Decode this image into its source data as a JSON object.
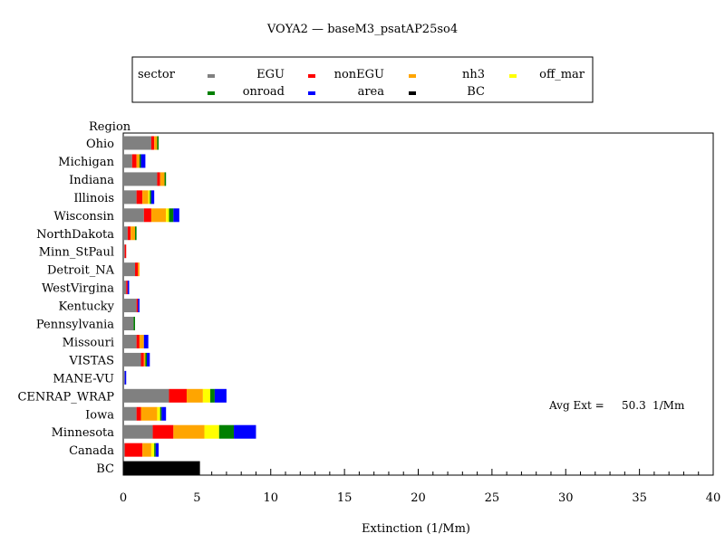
{
  "chart_data": {
    "type": "bar",
    "orientation": "horizontal",
    "stacked": true,
    "title": "VOYA2 — baseM3_psatAP25so4",
    "xlabel": "Extinction (1/Mm)",
    "ylabel": "Region",
    "xlim": [
      0,
      40
    ],
    "xticks": [
      0,
      5,
      10,
      15,
      20,
      25,
      30,
      35,
      40
    ],
    "legend_title": "sector",
    "legend_position": "top",
    "annotation": {
      "label": "Avg Ext =",
      "value": "50.3",
      "unit": "1/Mm"
    },
    "categories": [
      "Ohio",
      "Michigan",
      "Indiana",
      "Illinois",
      "Wisconsin",
      "NorthDakota",
      "Minn_StPaul",
      "Detroit_NA",
      "WestVirgina",
      "Kentucky",
      "Pennsylvania",
      "Missouri",
      "VISTAS",
      "MANE-VU",
      "CENRAP_WRAP",
      "Iowa",
      "Minnesota",
      "Canada",
      "BC"
    ],
    "series": [
      {
        "name": "EGU",
        "color": "#808080",
        "values": [
          1.9,
          0.6,
          2.3,
          0.9,
          1.4,
          0.3,
          0.1,
          0.8,
          0.2,
          0.9,
          0.7,
          0.9,
          1.2,
          0.1,
          3.1,
          0.9,
          2.0,
          0.1,
          0.0
        ]
      },
      {
        "name": "nonEGU",
        "color": "#ff0000",
        "values": [
          0.2,
          0.3,
          0.2,
          0.4,
          0.5,
          0.2,
          0.1,
          0.2,
          0.1,
          0.1,
          0.0,
          0.2,
          0.2,
          0.0,
          1.2,
          0.3,
          1.4,
          1.2,
          0.0
        ]
      },
      {
        "name": "nh3",
        "color": "#ffa500",
        "values": [
          0.2,
          0.2,
          0.3,
          0.4,
          1.0,
          0.3,
          0.0,
          0.1,
          0.0,
          0.0,
          0.0,
          0.3,
          0.1,
          0.0,
          1.1,
          1.1,
          2.1,
          0.6,
          0.0
        ]
      },
      {
        "name": "off_mar",
        "color": "#ffff00",
        "values": [
          0.0,
          0.0,
          0.0,
          0.1,
          0.2,
          0.0,
          0.0,
          0.0,
          0.0,
          0.0,
          0.0,
          0.0,
          0.0,
          0.0,
          0.5,
          0.2,
          1.0,
          0.2,
          0.0
        ]
      },
      {
        "name": "onroad",
        "color": "#008000",
        "values": [
          0.1,
          0.1,
          0.1,
          0.1,
          0.3,
          0.1,
          0.0,
          0.0,
          0.0,
          0.0,
          0.1,
          0.0,
          0.1,
          0.0,
          0.3,
          0.1,
          1.0,
          0.1,
          0.0
        ]
      },
      {
        "name": "area",
        "color": "#0000ff",
        "values": [
          0.0,
          0.3,
          0.0,
          0.2,
          0.4,
          0.0,
          0.0,
          0.0,
          0.1,
          0.1,
          0.0,
          0.3,
          0.2,
          0.1,
          0.8,
          0.3,
          1.5,
          0.2,
          0.0
        ]
      },
      {
        "name": "BC",
        "color": "#000000",
        "values": [
          0.0,
          0.0,
          0.0,
          0.0,
          0.0,
          0.0,
          0.0,
          0.0,
          0.0,
          0.0,
          0.0,
          0.0,
          0.0,
          0.0,
          0.0,
          0.0,
          0.0,
          0.0,
          5.2
        ]
      }
    ]
  }
}
